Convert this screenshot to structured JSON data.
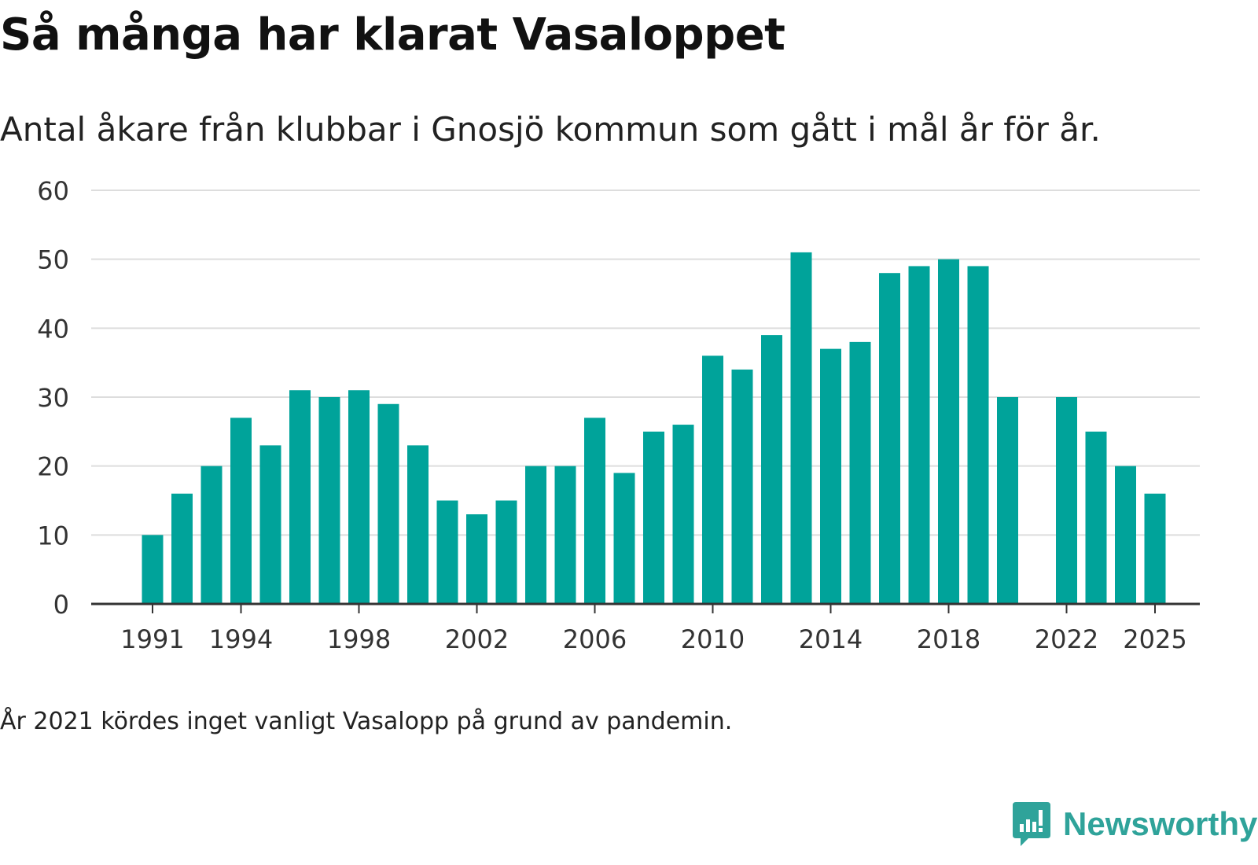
{
  "title": "Så många har klarat Vasaloppet",
  "subtitle": "Antal åkare från klubbar i Gnosjö kommun som gått i mål år för år.",
  "note": "År 2021 kördes inget vanligt Vasalopp på grund av pandemin.",
  "logo": {
    "text": "Newsworthy",
    "icon": "newsworthy-logo-icon",
    "color": "#2fa39a"
  },
  "colors": {
    "bar": "#00a39a",
    "grid": "#dddddd",
    "axis": "#333333"
  },
  "chart_data": {
    "type": "bar",
    "title": "Så många har klarat Vasaloppet",
    "xlabel": "",
    "ylabel": "",
    "ylim": [
      0,
      60
    ],
    "yticks": [
      0,
      10,
      20,
      30,
      40,
      50,
      60
    ],
    "xticks": [
      1991,
      1994,
      1998,
      2002,
      2006,
      2010,
      2014,
      2018,
      2022,
      2025
    ],
    "grid": true,
    "categories": [
      1991,
      1992,
      1993,
      1994,
      1995,
      1996,
      1997,
      1998,
      1999,
      2000,
      2001,
      2002,
      2003,
      2004,
      2005,
      2006,
      2007,
      2008,
      2009,
      2010,
      2011,
      2012,
      2013,
      2014,
      2015,
      2016,
      2017,
      2018,
      2019,
      2020,
      2021,
      2022,
      2023,
      2024,
      2025
    ],
    "values": [
      10,
      16,
      20,
      27,
      23,
      31,
      30,
      31,
      29,
      23,
      15,
      13,
      15,
      20,
      20,
      27,
      19,
      25,
      26,
      36,
      34,
      39,
      51,
      37,
      38,
      48,
      49,
      50,
      49,
      30,
      null,
      30,
      25,
      20,
      16
    ]
  }
}
